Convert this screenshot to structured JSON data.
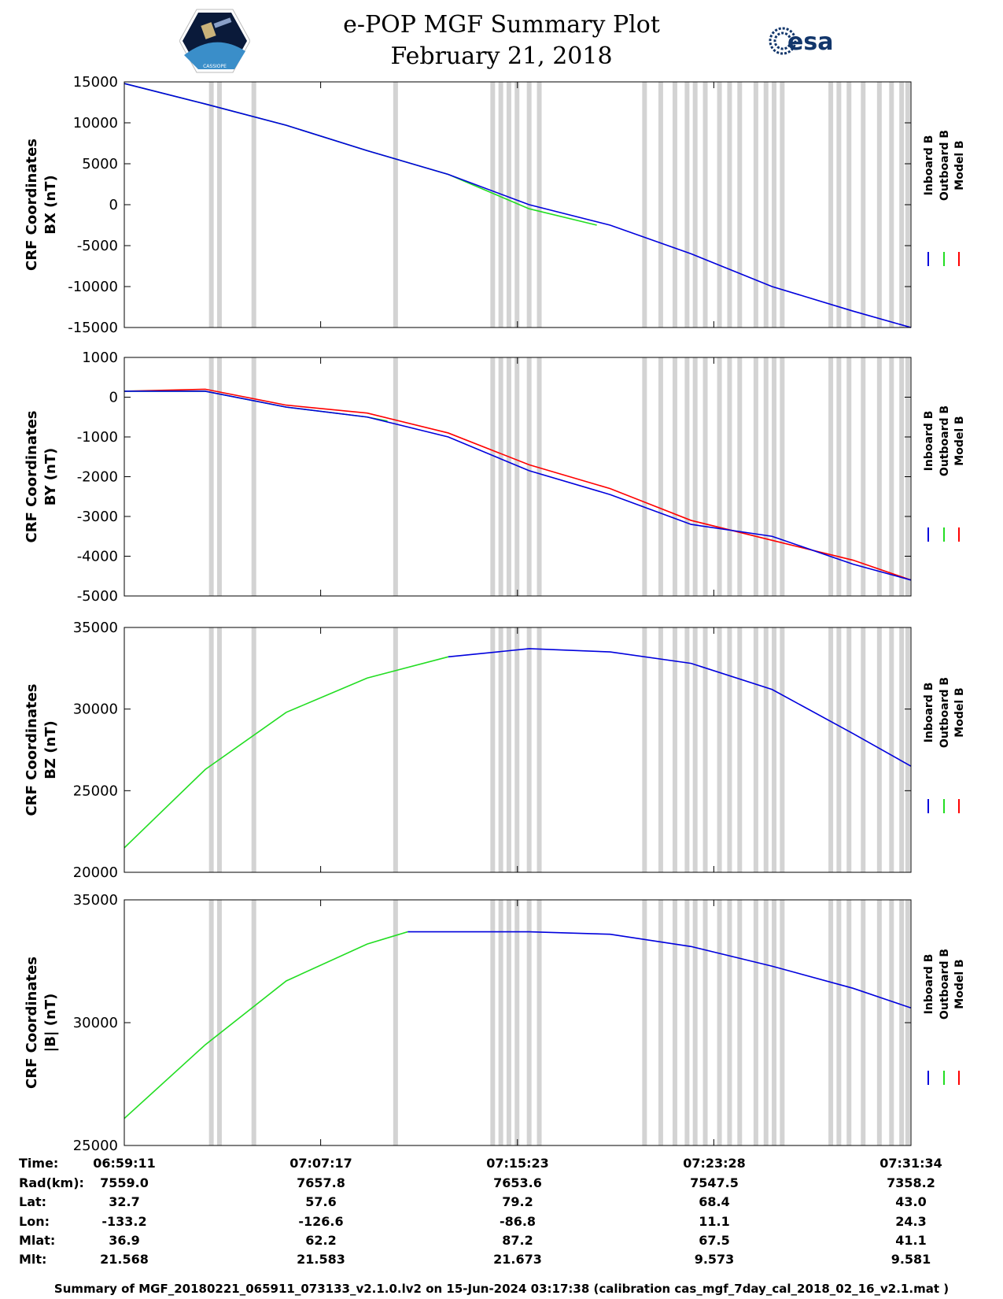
{
  "header": {
    "title": "e-POP MGF Summary Plot",
    "date": "February 21, 2018",
    "esa_logo_text": "esa",
    "epop_logo_text": "CASSIOPE"
  },
  "legend": [
    "Inboard B",
    "Outboard B",
    "Model B"
  ],
  "colors": {
    "inboard": "#0000dd",
    "outboard": "#22dd22",
    "model": "#ff0000",
    "gap": "#d3d3d3"
  },
  "chart_data": [
    {
      "type": "line",
      "id": "bx",
      "ylabel_line1": "CRF Coordinates",
      "ylabel_line2": "BX (nT)",
      "ylim": [
        -15000,
        15000
      ],
      "yticks": [
        15000,
        10000,
        5000,
        0,
        -5000,
        -10000,
        -15000
      ],
      "xlim": [
        0,
        1943
      ],
      "series": [
        {
          "name": "Outboard B",
          "color": "green",
          "x": [
            0,
            200,
            400,
            600,
            800,
            1000,
            1167
          ],
          "y": [
            14800,
            12300,
            9700,
            6600,
            3700,
            -500,
            -2500
          ]
        },
        {
          "name": "Inboard B",
          "color": "blue",
          "x": [
            0,
            200,
            400,
            600,
            800,
            1000,
            1200,
            1400,
            1600,
            1800,
            1943
          ],
          "y": [
            14800,
            12300,
            9700,
            6600,
            3700,
            0,
            -2500,
            -6000,
            -10000,
            -13000,
            -15000
          ]
        }
      ]
    },
    {
      "type": "line",
      "id": "by",
      "ylabel_line1": "CRF Coordinates",
      "ylabel_line2": "BY (nT)",
      "ylim": [
        -5000,
        1000
      ],
      "yticks": [
        1000,
        0,
        -1000,
        -2000,
        -3000,
        -4000,
        -5000
      ],
      "xlim": [
        0,
        1943
      ],
      "series": [
        {
          "name": "Model B",
          "color": "red",
          "x": [
            0,
            200,
            400,
            600,
            800,
            1000,
            1200,
            1400,
            1600,
            1800,
            1943
          ],
          "y": [
            150,
            200,
            -200,
            -400,
            -900,
            -1700,
            -2300,
            -3100,
            -3600,
            -4100,
            -4600
          ]
        },
        {
          "name": "Outboard B",
          "color": "green",
          "x": [
            0,
            200,
            400,
            600,
            650
          ],
          "y": [
            150,
            150,
            -250,
            -500,
            -600
          ]
        },
        {
          "name": "Inboard B",
          "color": "blue",
          "x": [
            0,
            200,
            400,
            600,
            800,
            1000,
            1200,
            1400,
            1600,
            1800,
            1943
          ],
          "y": [
            150,
            150,
            -250,
            -500,
            -1000,
            -1850,
            -2450,
            -3200,
            -3500,
            -4200,
            -4600
          ]
        }
      ]
    },
    {
      "type": "line",
      "id": "bz",
      "ylabel_line1": "CRF Coordinates",
      "ylabel_line2": "BZ (nT)",
      "ylim": [
        20000,
        35000
      ],
      "yticks": [
        35000,
        30000,
        25000,
        20000
      ],
      "xlim": [
        0,
        1943
      ],
      "series": [
        {
          "name": "Outboard B",
          "color": "green",
          "x": [
            0,
            200,
            400,
            600,
            800
          ],
          "y": [
            21500,
            26300,
            29800,
            31900,
            33200
          ]
        },
        {
          "name": "Inboard B",
          "color": "blue",
          "x": [
            800,
            1000,
            1200,
            1400,
            1600,
            1800,
            1943
          ],
          "y": [
            33200,
            33700,
            33500,
            32800,
            31200,
            28500,
            26500
          ]
        }
      ]
    },
    {
      "type": "line",
      "id": "bmag",
      "ylabel_line1": "CRF Coordinates",
      "ylabel_line2": "|B| (nT)",
      "ylim": [
        25000,
        35000
      ],
      "yticks": [
        35000,
        30000,
        25000
      ],
      "xlim": [
        0,
        1943
      ],
      "series": [
        {
          "name": "Outboard B",
          "color": "green",
          "x": [
            0,
            200,
            400,
            600,
            700
          ],
          "y": [
            26100,
            29100,
            31700,
            33200,
            33700
          ]
        },
        {
          "name": "Inboard B",
          "color": "blue",
          "x": [
            700,
            800,
            1000,
            1200,
            1400,
            1600,
            1800,
            1943
          ],
          "y": [
            33700,
            33700,
            33700,
            33600,
            33100,
            32300,
            31400,
            30600
          ]
        }
      ]
    }
  ],
  "gap_times": [
    215,
    235,
    320,
    670,
    910,
    930,
    950,
    970,
    1000,
    1025,
    1285,
    1325,
    1360,
    1390,
    1410,
    1435,
    1470,
    1495,
    1520,
    1560,
    1585,
    1605,
    1625,
    1745,
    1765,
    1790,
    1825,
    1865,
    1895,
    1920,
    1935
  ],
  "info_table": {
    "row_labels": [
      "Time:",
      "Rad(km):",
      "Lat:",
      "Lon:",
      "Mlat:",
      "Mlt:"
    ],
    "columns": [
      [
        "06:59:11",
        "7559.0",
        "32.7",
        "-133.2",
        "36.9",
        "21.568"
      ],
      [
        "07:07:17",
        "7657.8",
        "57.6",
        "-126.6",
        "62.2",
        "21.583"
      ],
      [
        "07:15:23",
        "7653.6",
        "79.2",
        "-86.8",
        "87.2",
        "21.673"
      ],
      [
        "07:23:28",
        "7547.5",
        "68.4",
        "11.1",
        "67.5",
        "9.573"
      ],
      [
        "07:31:34",
        "7358.2",
        "43.0",
        "24.3",
        "41.1",
        "9.581"
      ]
    ]
  },
  "footer": "Summary of MGF_20180221_065911_073133_v2.1.0.lv2 on 15-Jun-2024 03:17:38 (calibration cas_mgf_7day_cal_2018_02_16_v2.1.mat )"
}
